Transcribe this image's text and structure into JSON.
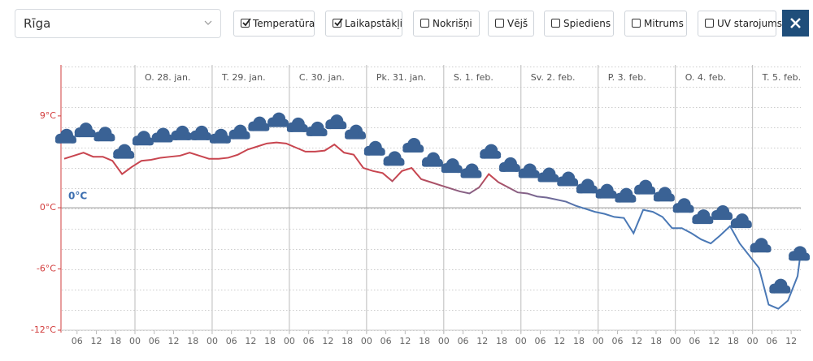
{
  "location": "Rīga",
  "options": [
    {
      "label": "Temperatūra",
      "checked": true
    },
    {
      "label": "Laikapstākļi",
      "checked": true
    },
    {
      "label": "Nokrišņi",
      "checked": false
    },
    {
      "label": "Vējš",
      "checked": false
    },
    {
      "label": "Spiediens",
      "checked": false
    },
    {
      "label": "Mitrums",
      "checked": false
    },
    {
      "label": "UV starojums",
      "checked": false
    }
  ],
  "chart_data": {
    "type": "line",
    "annotation": "0°C",
    "warm_color": "#c8454f",
    "cold_color": "#4a78b5",
    "x": [
      2,
      5,
      8,
      11,
      14,
      17,
      20,
      23,
      26,
      29,
      32,
      35,
      38,
      41,
      44,
      47,
      50,
      53,
      56,
      59,
      62,
      65,
      68,
      71,
      74,
      77,
      80,
      83,
      86,
      89,
      92,
      95,
      98,
      101,
      104,
      107,
      110,
      113,
      116,
      119,
      122,
      125,
      128,
      131,
      134,
      137,
      140,
      143,
      146,
      149,
      152,
      155,
      158,
      161,
      164,
      167,
      170,
      173,
      176,
      179,
      182,
      185,
      188,
      191,
      194,
      197,
      200,
      203,
      206,
      209,
      212,
      215,
      218,
      221,
      224,
      227,
      230,
      231
    ],
    "series": [
      {
        "name": "Temperatūra",
        "values": [
          4.8,
          5.1,
          5.4,
          5.0,
          5.0,
          4.6,
          3.3,
          4.0,
          4.6,
          4.7,
          4.9,
          5.0,
          5.1,
          5.4,
          5.1,
          4.8,
          4.8,
          4.9,
          5.2,
          5.7,
          6.0,
          6.3,
          6.4,
          6.3,
          5.9,
          5.5,
          5.5,
          5.6,
          6.2,
          5.4,
          5.2,
          3.9,
          3.6,
          3.4,
          2.6,
          3.6,
          3.9,
          2.8,
          2.5,
          2.2,
          1.9,
          1.6,
          1.4,
          2.0,
          3.3,
          2.5,
          2.0,
          1.5,
          1.4,
          1.1,
          1.0,
          0.8,
          0.6,
          0.2,
          -0.1,
          -0.4,
          -0.6,
          -0.9,
          -1.0,
          -2.5,
          -0.2,
          -0.4,
          -0.9,
          -2.0,
          -2.0,
          -2.5,
          -3.1,
          -3.5,
          -2.7,
          -1.8,
          -3.5,
          -4.7,
          -5.9,
          -9.5,
          -9.9,
          -9.1,
          -6.7,
          -4.3
        ]
      }
    ],
    "xlim": [
      1,
      231
    ],
    "ylim": [
      -12,
      14
    ],
    "yticks": [
      {
        "value": 9,
        "label": "9°C"
      },
      {
        "value": 0,
        "label": "0°C"
      },
      {
        "value": -6,
        "label": "-6°C"
      },
      {
        "value": -12,
        "label": "-12°C"
      }
    ],
    "day_ticks": [
      {
        "value": 24,
        "label": "O. 28. jan."
      },
      {
        "value": 48,
        "label": "T. 29. jan."
      },
      {
        "value": 72,
        "label": "C. 30. jan."
      },
      {
        "value": 96,
        "label": "Pk. 31. jan."
      },
      {
        "value": 120,
        "label": "S. 1. feb."
      },
      {
        "value": 144,
        "label": "Sv. 2. feb."
      },
      {
        "value": 168,
        "label": "P. 3. feb."
      },
      {
        "value": 192,
        "label": "O. 4. feb."
      },
      {
        "value": 216,
        "label": "T. 5. feb."
      }
    ],
    "xticks": [
      {
        "value": 6,
        "label": "06"
      },
      {
        "value": 12,
        "label": "12"
      },
      {
        "value": 18,
        "label": "18"
      },
      {
        "value": 24,
        "label": "00"
      },
      {
        "value": 30,
        "label": "06"
      },
      {
        "value": 36,
        "label": "12"
      },
      {
        "value": 42,
        "label": "18"
      },
      {
        "value": 48,
        "label": "00"
      },
      {
        "value": 54,
        "label": "06"
      },
      {
        "value": 60,
        "label": "12"
      },
      {
        "value": 66,
        "label": "18"
      },
      {
        "value": 72,
        "label": "00"
      },
      {
        "value": 78,
        "label": "06"
      },
      {
        "value": 84,
        "label": "12"
      },
      {
        "value": 90,
        "label": "18"
      },
      {
        "value": 96,
        "label": "00"
      },
      {
        "value": 102,
        "label": "06"
      },
      {
        "value": 108,
        "label": "12"
      },
      {
        "value": 114,
        "label": "18"
      },
      {
        "value": 120,
        "label": "00"
      },
      {
        "value": 126,
        "label": "06"
      },
      {
        "value": 132,
        "label": "12"
      },
      {
        "value": 138,
        "label": "18"
      },
      {
        "value": 144,
        "label": "00"
      },
      {
        "value": 150,
        "label": "06"
      },
      {
        "value": 156,
        "label": "12"
      },
      {
        "value": 162,
        "label": "18"
      },
      {
        "value": 168,
        "label": "00"
      },
      {
        "value": 174,
        "label": "06"
      },
      {
        "value": 180,
        "label": "12"
      },
      {
        "value": 186,
        "label": "18"
      },
      {
        "value": 192,
        "label": "00"
      },
      {
        "value": 198,
        "label": "06"
      },
      {
        "value": 204,
        "label": "12"
      },
      {
        "value": 210,
        "label": "18"
      },
      {
        "value": 216,
        "label": "00"
      },
      {
        "value": 222,
        "label": "06"
      },
      {
        "value": 228,
        "label": "12"
      }
    ]
  }
}
